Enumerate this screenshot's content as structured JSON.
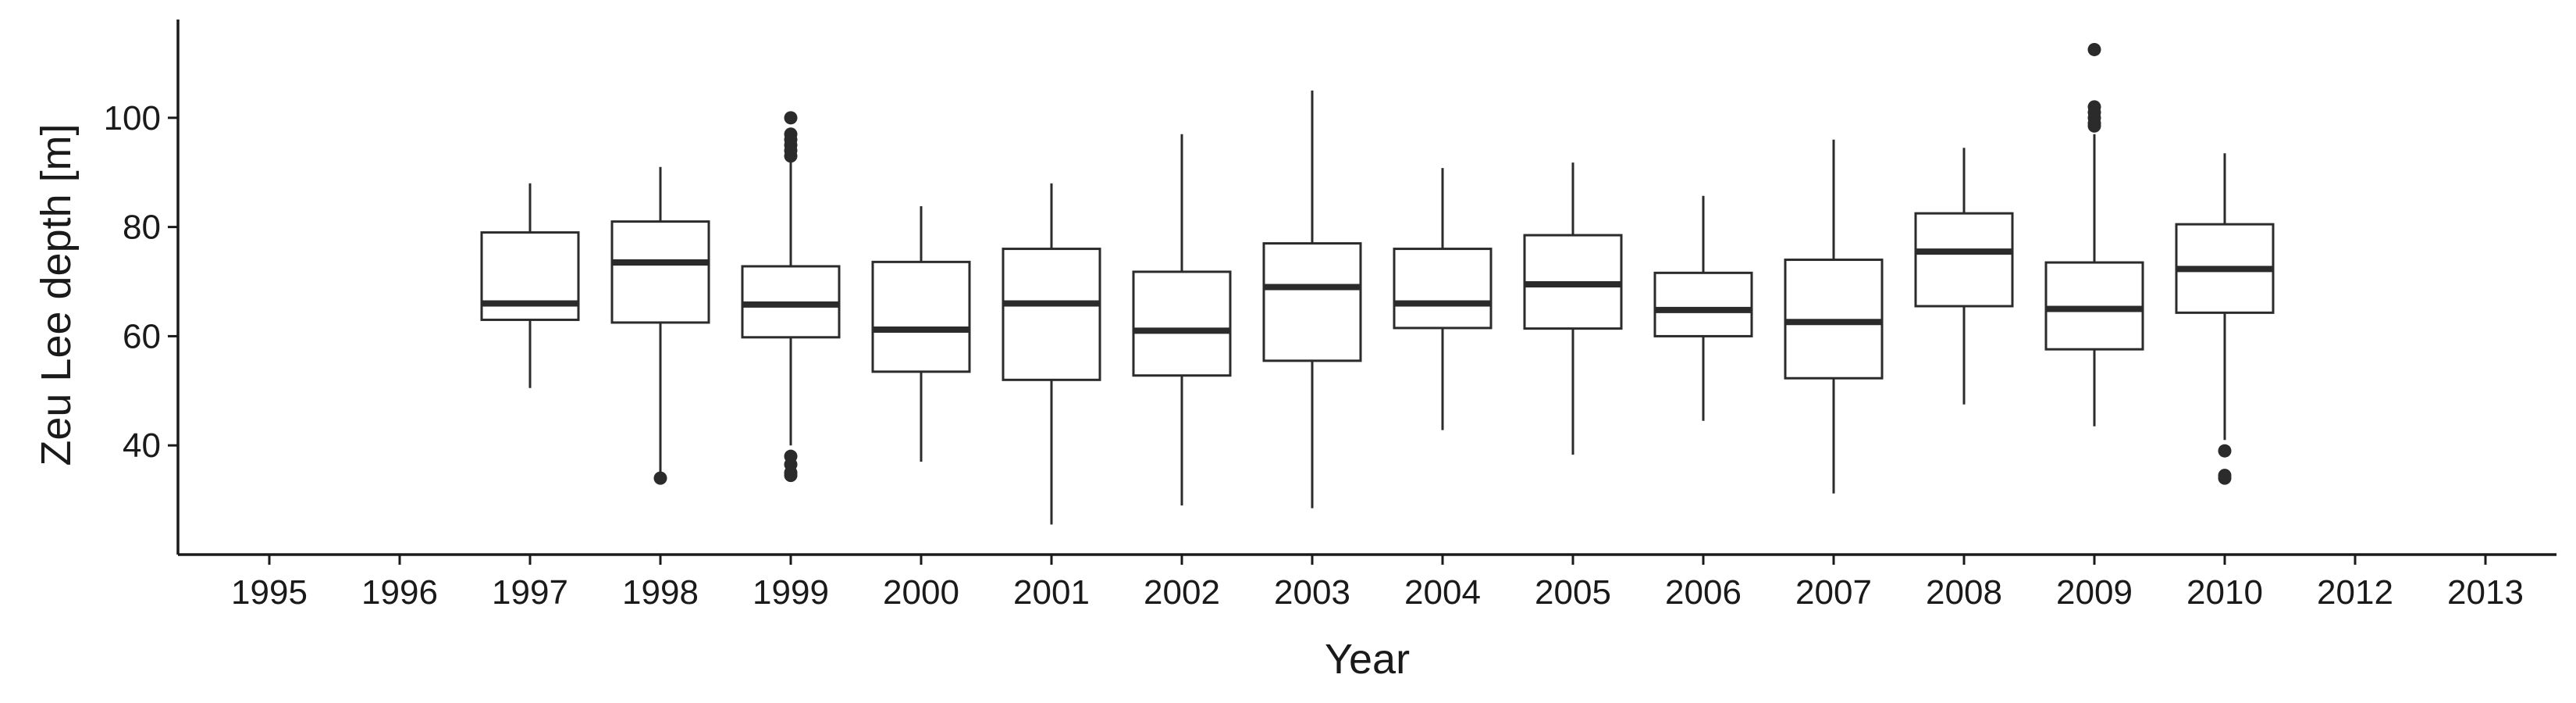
{
  "chart_data": {
    "type": "box",
    "title": "",
    "xlabel": "Year",
    "ylabel": "Zeu Lee depth [m]",
    "categories": [
      "1995",
      "1996",
      "1997",
      "1998",
      "1999",
      "2000",
      "2001",
      "2002",
      "2003",
      "2004",
      "2005",
      "2006",
      "2007",
      "2008",
      "2009",
      "2010",
      "2012",
      "2013"
    ],
    "ylim": [
      20,
      118
    ],
    "yticks": [
      40,
      60,
      80,
      100
    ],
    "grid": false,
    "legend": "none",
    "colors": {
      "box_fill": "#ffffff",
      "line": "#2b2b2b",
      "axis": "#1a1a1a"
    },
    "boxes": [
      {
        "category": "1997",
        "low": 50.5,
        "q1": 63,
        "median": 66,
        "q3": 79,
        "high": 88,
        "outliers": []
      },
      {
        "category": "1998",
        "low": 34,
        "q1": 62.5,
        "median": 73.5,
        "q3": 81,
        "high": 91,
        "outliers": [
          34
        ]
      },
      {
        "category": "1999",
        "low": 40,
        "q1": 59.8,
        "median": 65.8,
        "q3": 72.8,
        "high": 92.5,
        "outliers": [
          100,
          97,
          96,
          95,
          94,
          93,
          38,
          36.5,
          35,
          34.5
        ]
      },
      {
        "category": "2000",
        "low": 37,
        "q1": 53.5,
        "median": 61.2,
        "q3": 73.6,
        "high": 83.8,
        "outliers": []
      },
      {
        "category": "2001",
        "low": 25.5,
        "q1": 52,
        "median": 66,
        "q3": 76,
        "high": 88,
        "outliers": []
      },
      {
        "category": "2002",
        "low": 29,
        "q1": 52.8,
        "median": 61,
        "q3": 71.8,
        "high": 97,
        "outliers": []
      },
      {
        "category": "2003",
        "low": 28.5,
        "q1": 55.5,
        "median": 69,
        "q3": 77,
        "high": 105,
        "outliers": []
      },
      {
        "category": "2004",
        "low": 42.8,
        "q1": 61.5,
        "median": 66,
        "q3": 76,
        "high": 90.8,
        "outliers": []
      },
      {
        "category": "2005",
        "low": 38.3,
        "q1": 61.4,
        "median": 69.5,
        "q3": 78.5,
        "high": 91.8,
        "outliers": []
      },
      {
        "category": "2006",
        "low": 44.5,
        "q1": 60,
        "median": 64.8,
        "q3": 71.6,
        "high": 85.7,
        "outliers": []
      },
      {
        "category": "2007",
        "low": 31.2,
        "q1": 52.3,
        "median": 62.6,
        "q3": 74,
        "high": 96,
        "outliers": []
      },
      {
        "category": "2008",
        "low": 47.5,
        "q1": 65.5,
        "median": 75.5,
        "q3": 82.5,
        "high": 94.5,
        "outliers": []
      },
      {
        "category": "2009",
        "low": 43.5,
        "q1": 57.6,
        "median": 65,
        "q3": 73.5,
        "high": 97,
        "outliers": [
          112.5,
          102,
          101,
          100,
          99,
          98.5
        ]
      },
      {
        "category": "2010",
        "low": 41,
        "q1": 64.3,
        "median": 72.3,
        "q3": 80.5,
        "high": 93.5,
        "outliers": [
          39,
          34.5,
          34
        ]
      }
    ]
  }
}
